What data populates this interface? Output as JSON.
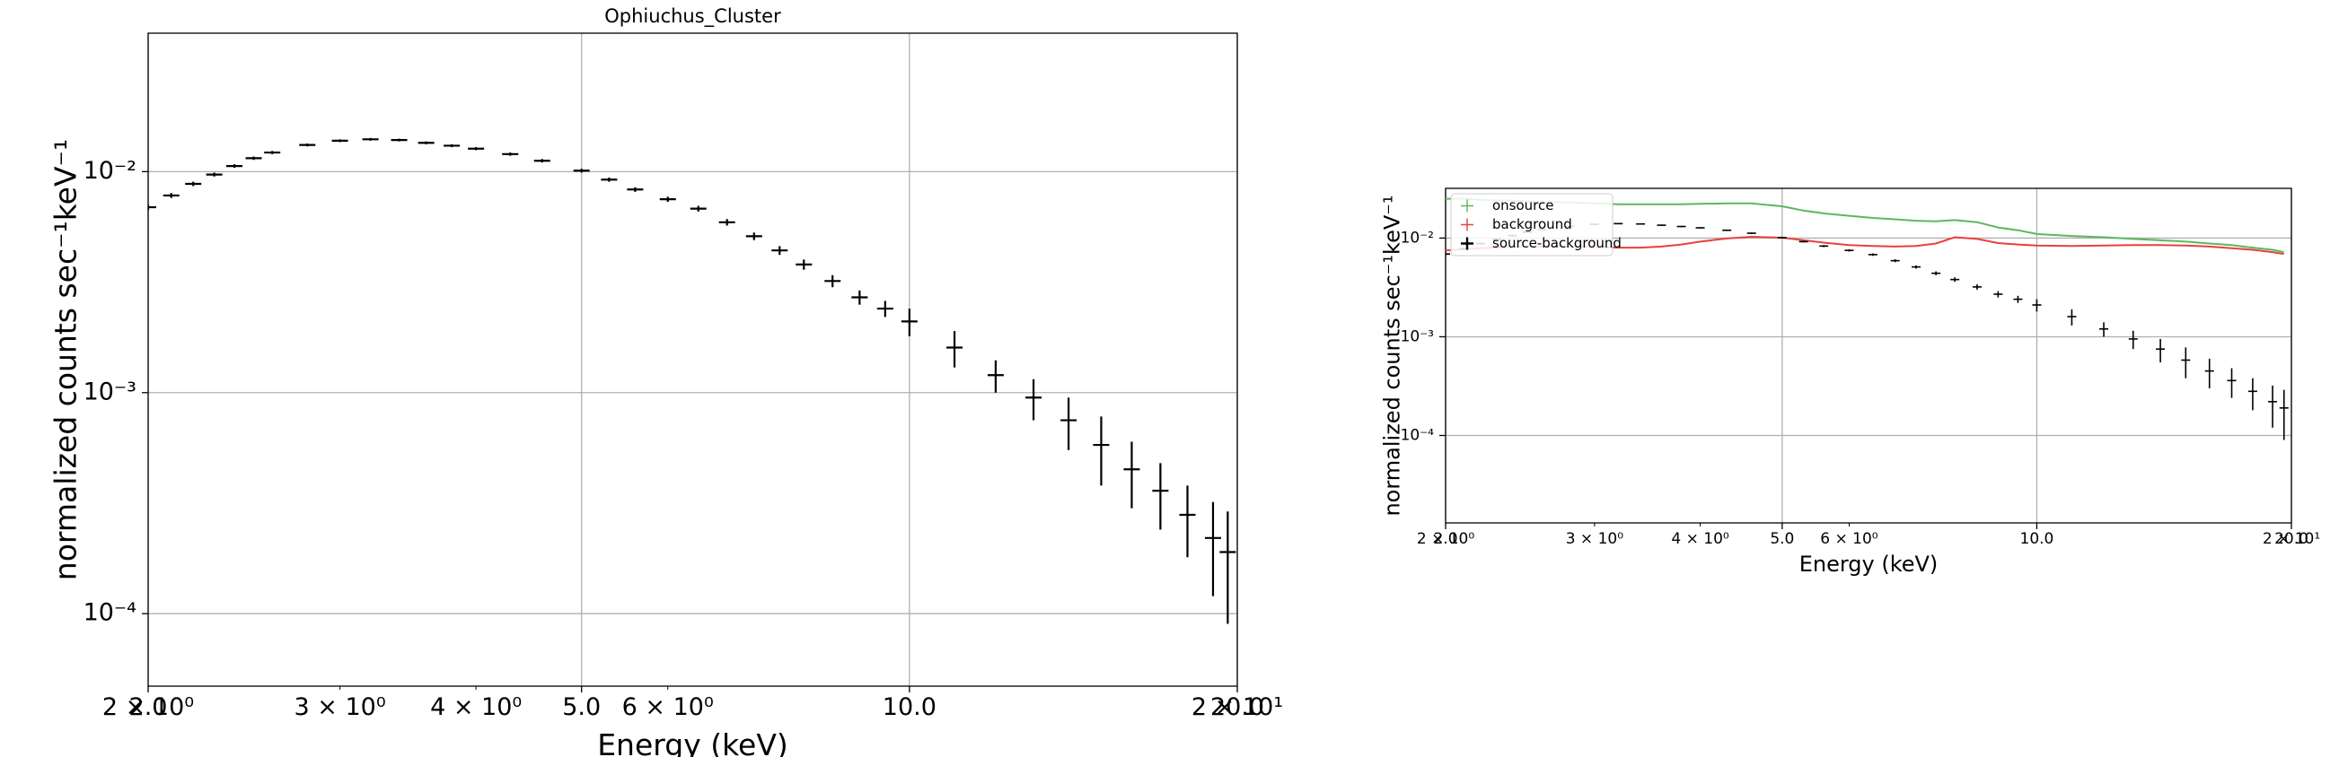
{
  "chart_data": [
    {
      "type": "errorbar",
      "title": "Ophiuchus_Cluster",
      "xlabel": "Energy (keV)",
      "ylabel": "normalized counts sec⁻¹keV⁻¹",
      "xscale": "log",
      "yscale": "log",
      "grid": true,
      "color": "#000000",
      "xlim": [
        2,
        20
      ],
      "ylim": [
        4.7e-05,
        0.0423
      ],
      "xticks": [
        {
          "value": 2,
          "label": "2.0"
        },
        {
          "value": 5,
          "label": "5.0"
        },
        {
          "value": 10,
          "label": "10.0"
        },
        {
          "value": 20,
          "label": "20.0"
        }
      ],
      "xminorticks": [
        {
          "value": 2,
          "label": "2 × 10⁰"
        },
        {
          "value": 3,
          "label": "3 × 10⁰"
        },
        {
          "value": 4,
          "label": "4 × 10⁰"
        },
        {
          "value": 6,
          "label": "6 × 10⁰"
        },
        {
          "value": 20,
          "label": "2 × 10¹"
        }
      ],
      "yticks": [
        {
          "value": 0.01,
          "label": "10⁻²"
        },
        {
          "value": 0.001,
          "label": "10⁻³"
        },
        {
          "value": 0.0001,
          "label": "10⁻⁴"
        }
      ],
      "x": [
        2.0,
        2.1,
        2.2,
        2.3,
        2.4,
        2.5,
        2.6,
        2.8,
        3.0,
        3.2,
        3.4,
        3.6,
        3.8,
        4.0,
        4.3,
        4.6,
        5.0,
        5.3,
        5.6,
        6.0,
        6.4,
        6.8,
        7.2,
        7.6,
        8.0,
        8.5,
        9.0,
        9.5,
        10,
        11,
        12,
        13,
        14,
        15,
        16,
        17,
        18,
        19,
        19.6
      ],
      "values": [
        0.0069,
        0.0078,
        0.0088,
        0.0097,
        0.0106,
        0.0115,
        0.0122,
        0.0132,
        0.0138,
        0.014,
        0.0139,
        0.0135,
        0.0131,
        0.0127,
        0.012,
        0.0112,
        0.0101,
        0.0092,
        0.0083,
        0.0075,
        0.0068,
        0.0059,
        0.0051,
        0.0044,
        0.0038,
        0.0032,
        0.0027,
        0.0024,
        0.0021,
        0.0016,
        0.0012,
        0.00095,
        0.00075,
        0.00058,
        0.00045,
        0.00036,
        0.00028,
        0.00022,
        0.00019
      ],
      "errors": [
        0.0002,
        0.0002,
        0.0002,
        0.0002,
        0.0002,
        0.0002,
        0.0002,
        0.0002,
        0.0002,
        0.0002,
        0.0002,
        0.0002,
        0.0002,
        0.0002,
        0.0002,
        0.0002,
        0.0002,
        0.0002,
        0.0002,
        0.0002,
        0.0002,
        0.0002,
        0.0002,
        0.0002,
        0.0002,
        0.0002,
        0.0002,
        0.0002,
        0.0003,
        0.0003,
        0.0002,
        0.0002,
        0.0002,
        0.0002,
        0.00015,
        0.00012,
        0.0001,
        0.0001,
        0.0001
      ]
    },
    {
      "type": "errorbar",
      "xlabel": "Energy (keV)",
      "ylabel": "normalized counts sec⁻¹keV⁻¹",
      "xscale": "log",
      "yscale": "log",
      "grid": true,
      "legend": "upper left",
      "xlim": [
        2,
        20
      ],
      "ylim": [
        1.3e-05,
        0.0319
      ],
      "xticks": [
        {
          "value": 2,
          "label": "2.0"
        },
        {
          "value": 5,
          "label": "5.0"
        },
        {
          "value": 10,
          "label": "10.0"
        },
        {
          "value": 20,
          "label": "20.0"
        }
      ],
      "xminorticks": [
        {
          "value": 2,
          "label": "2 × 10⁰"
        },
        {
          "value": 3,
          "label": "3 × 10⁰"
        },
        {
          "value": 4,
          "label": "4 × 10⁰"
        },
        {
          "value": 6,
          "label": "6 × 10⁰"
        },
        {
          "value": 20,
          "label": "2 × 10¹"
        }
      ],
      "yticks": [
        {
          "value": 0.01,
          "label": "10⁻²"
        },
        {
          "value": 0.001,
          "label": "10⁻³"
        },
        {
          "value": 0.0001,
          "label": "10⁻⁴"
        }
      ],
      "x": [
        2.0,
        2.1,
        2.2,
        2.3,
        2.4,
        2.5,
        2.6,
        2.8,
        3.0,
        3.2,
        3.4,
        3.6,
        3.8,
        4.0,
        4.3,
        4.6,
        5.0,
        5.3,
        5.6,
        6.0,
        6.4,
        6.8,
        7.2,
        7.6,
        8.0,
        8.5,
        9.0,
        9.5,
        10,
        11,
        12,
        13,
        14,
        15,
        16,
        17,
        18,
        19,
        19.6
      ],
      "series": [
        {
          "name": "onsource",
          "color": "#5cb85c",
          "values": [
            0.025,
            0.025,
            0.0245,
            0.024,
            0.024,
            0.0235,
            0.023,
            0.023,
            0.0225,
            0.022,
            0.022,
            0.022,
            0.022,
            0.0222,
            0.0225,
            0.0225,
            0.021,
            0.019,
            0.0178,
            0.0168,
            0.016,
            0.0155,
            0.015,
            0.0148,
            0.0152,
            0.0145,
            0.0128,
            0.012,
            0.011,
            0.0105,
            0.0102,
            0.0098,
            0.0095,
            0.0092,
            0.0088,
            0.0085,
            0.008,
            0.0076,
            0.0072
          ]
        },
        {
          "name": "background",
          "color": "#e8413c",
          "values": [
            0.0075,
            0.0077,
            0.0079,
            0.008,
            0.0081,
            0.0082,
            0.0082,
            0.0082,
            0.0081,
            0.008,
            0.008,
            0.0082,
            0.0086,
            0.0092,
            0.0099,
            0.0103,
            0.0101,
            0.0095,
            0.009,
            0.0085,
            0.0083,
            0.0082,
            0.0083,
            0.0088,
            0.0102,
            0.0098,
            0.0089,
            0.0086,
            0.0084,
            0.0083,
            0.0084,
            0.0085,
            0.0085,
            0.0084,
            0.0082,
            0.0079,
            0.0076,
            0.0072,
            0.0069
          ]
        },
        {
          "name": "source-background",
          "color": "#000000",
          "values": [
            0.0069,
            0.0078,
            0.0088,
            0.0097,
            0.0106,
            0.0115,
            0.0122,
            0.0132,
            0.0138,
            0.014,
            0.0139,
            0.0135,
            0.0131,
            0.0127,
            0.012,
            0.0112,
            0.0101,
            0.0092,
            0.0083,
            0.0075,
            0.0068,
            0.0059,
            0.0051,
            0.0044,
            0.0038,
            0.0032,
            0.0027,
            0.0024,
            0.0021,
            0.0016,
            0.0012,
            0.00095,
            0.00075,
            0.00058,
            0.00045,
            0.00036,
            0.00028,
            0.00022,
            0.00019
          ],
          "errors": [
            0.0002,
            0.0002,
            0.0002,
            0.0002,
            0.0002,
            0.0002,
            0.0002,
            0.0002,
            0.0002,
            0.0002,
            0.0002,
            0.0002,
            0.0002,
            0.0002,
            0.0002,
            0.0002,
            0.0002,
            0.0002,
            0.0002,
            0.0002,
            0.0002,
            0.0002,
            0.0002,
            0.0002,
            0.0002,
            0.0002,
            0.0002,
            0.0002,
            0.0003,
            0.0003,
            0.0002,
            0.0002,
            0.0002,
            0.0002,
            0.00015,
            0.00012,
            0.0001,
            0.0001,
            0.0001
          ]
        }
      ]
    }
  ]
}
